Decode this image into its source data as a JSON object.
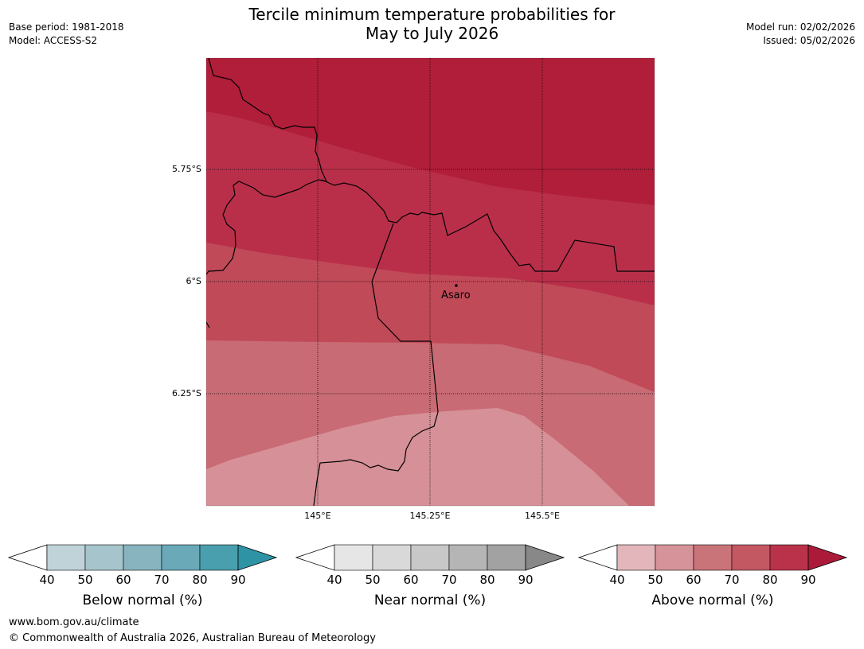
{
  "title_line1": "Tercile minimum temperature probabilities for",
  "title_line2": "May to July 2026",
  "meta_left": [
    "Base period: 1981-2018",
    "Model: ACCESS-S2"
  ],
  "meta_right": [
    "Model run: 02/02/2026",
    "Issued: 05/02/2026"
  ],
  "map": {
    "lat_ticks": [
      "5.75°S",
      "6°S",
      "6.25°S"
    ],
    "lon_ticks": [
      "145°E",
      "145.25°E",
      "145.5°E"
    ],
    "place": "Asaro",
    "band_colors": [
      "#b01e3a",
      "#b92f4a",
      "#c04a58",
      "#c96b74",
      "#d69098"
    ]
  },
  "colorbars": [
    {
      "name": "below",
      "title": "Below normal (%)",
      "ticks": [
        "40",
        "50",
        "60",
        "70",
        "80",
        "90"
      ],
      "colors": [
        "#bfd3d9",
        "#a6c4cb",
        "#88b4c0",
        "#6aa9b8",
        "#4a9fae"
      ],
      "arrow_color": "#2e93a5"
    },
    {
      "name": "near",
      "title": "Near normal (%)",
      "ticks": [
        "40",
        "50",
        "60",
        "70",
        "80",
        "90"
      ],
      "colors": [
        "#e6e6e6",
        "#d9d9d9",
        "#c8c8c8",
        "#b5b5b5",
        "#a2a2a2"
      ],
      "arrow_color": "#888888"
    },
    {
      "name": "above",
      "title": "Above normal (%)",
      "ticks": [
        "40",
        "50",
        "60",
        "70",
        "80",
        "90"
      ],
      "colors": [
        "#e3b6bc",
        "#d6949a",
        "#c97479",
        "#c35862",
        "#ba324a"
      ],
      "arrow_color": "#ac1a3a"
    }
  ],
  "footer": {
    "url": "www.bom.gov.au/climate",
    "copyright": "© Commonwealth of Australia 2026, Australian Bureau of Meteorology"
  }
}
